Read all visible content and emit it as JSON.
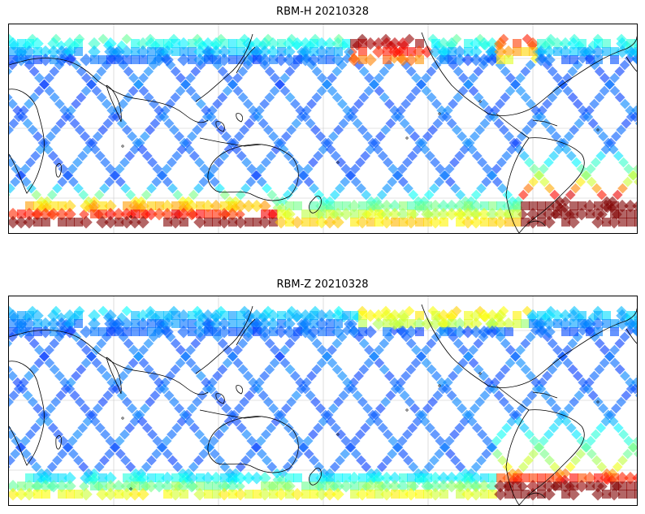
{
  "panels": [
    {
      "id": "top",
      "title": "RBM-H 20210328"
    },
    {
      "id": "bottom",
      "title": "RBM-Z 20210328"
    }
  ],
  "colormap": {
    "name": "jet",
    "alpha": 0.6
  },
  "colors": {
    "coastline": "#000000",
    "gridline": "#c8c8c8",
    "frame": "#000000",
    "background": "#ffffff"
  }
}
